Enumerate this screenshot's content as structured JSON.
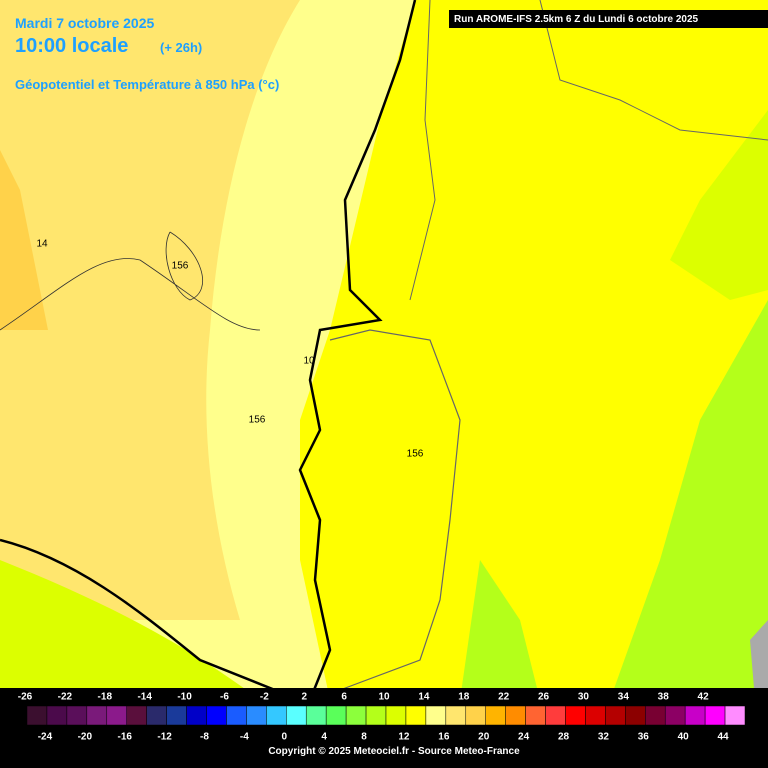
{
  "header": {
    "date": "Mardi 7 octobre 2025",
    "time": "10:00 locale",
    "lead": "(+ 26h)",
    "field": "Géopotentiel et Température à 850 hPa (°c)",
    "run": "Run AROME-IFS 2.5km 6 Z du Lundi 6 octobre 2025"
  },
  "contour_labels": [
    "14",
    "156",
    "10",
    "156",
    "156"
  ],
  "legend": {
    "ticks": [
      -26,
      -24,
      -22,
      -20,
      -18,
      -16,
      -14,
      -12,
      -10,
      -8,
      -6,
      -4,
      -2,
      0,
      2,
      4,
      6,
      8,
      10,
      12,
      14,
      16,
      18,
      20,
      22,
      24,
      26,
      28,
      30,
      32,
      34,
      36,
      38,
      40,
      42,
      44
    ],
    "colors": [
      "#3b0f2f",
      "#4b0a4b",
      "#5a0f5a",
      "#7a1a7a",
      "#8b1a8b",
      "#5a0f3c",
      "#2a2a6b",
      "#1a3a9a",
      "#0000c8",
      "#0000ff",
      "#1a5cff",
      "#2a8cff",
      "#34c8ff",
      "#5affff",
      "#5aff9a",
      "#5aff5a",
      "#8cff3c",
      "#b4ff1a",
      "#dcff00",
      "#ffff00",
      "#ffff8c",
      "#ffe66e",
      "#ffd24a",
      "#ffb400",
      "#ff8c00",
      "#ff6432",
      "#ff3c3c",
      "#ff0000",
      "#dc0000",
      "#b40000",
      "#8c0000",
      "#780032",
      "#8c0064",
      "#c800c8",
      "#ff00ff",
      "#ff8cff"
    ]
  },
  "copyright": "Copyright © 2025 Meteociel.fr - Source Meteo-France"
}
